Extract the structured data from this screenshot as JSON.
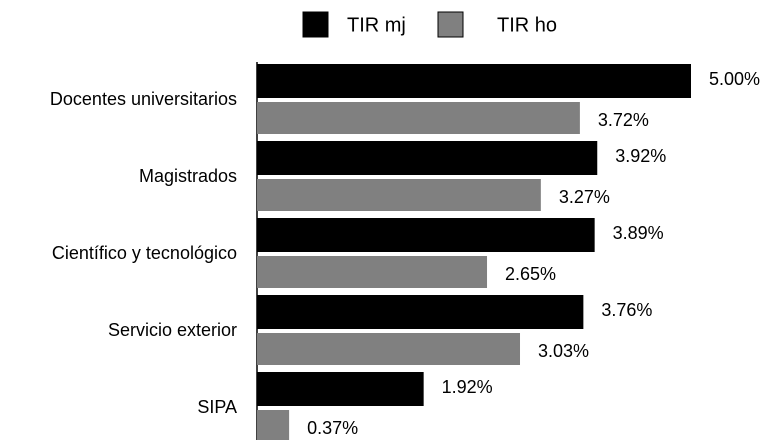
{
  "chart_data": {
    "type": "hbar",
    "categories": [
      "Docentes universitarios",
      "Magistrados",
      "Científico y tecnológico",
      "Servicio exterior",
      "SIPA"
    ],
    "series": [
      {
        "name": "TIR mj",
        "color": "#000000",
        "values": [
          5.0,
          3.92,
          3.89,
          3.76,
          1.92
        ],
        "value_labels": [
          "5.00%",
          "3.92%",
          "3.89%",
          "3.76%",
          "1.92%"
        ]
      },
      {
        "name": "TIR ho",
        "color": "#808080",
        "values": [
          3.72,
          3.27,
          2.65,
          3.03,
          0.37
        ],
        "value_labels": [
          "3.72%",
          "3.27%",
          "2.65%",
          "3.03%",
          "0.37%"
        ]
      }
    ],
    "legend": "top"
  }
}
